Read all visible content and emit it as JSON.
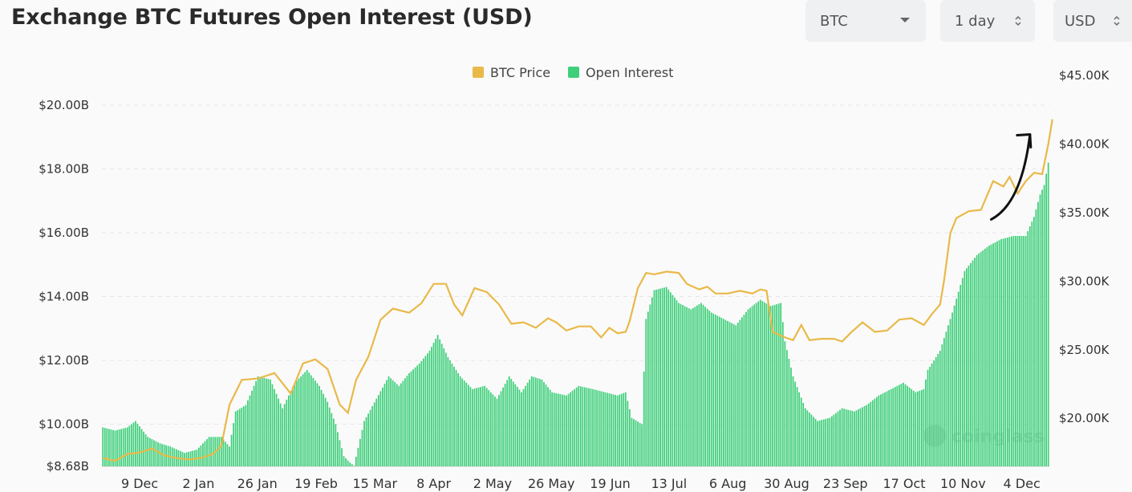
{
  "header": {
    "title": "Exchange BTC Futures Open Interest (USD)",
    "controls": [
      {
        "label": "BTC",
        "kind": "select"
      },
      {
        "label": "1 day",
        "kind": "stepper"
      },
      {
        "label": "USD",
        "kind": "stepper"
      }
    ]
  },
  "watermark": "coinglass",
  "colors": {
    "price": "#e9b949",
    "oi": "#3ecf7a",
    "arrow": "#111111",
    "grid": "#e6e6e6"
  },
  "chart_data": {
    "type": "bar",
    "legend_position": "top-center",
    "grid": true,
    "left_axis": {
      "ticks": [
        "$20.00B",
        "$18.00B",
        "$16.00B",
        "$14.00B",
        "$12.00B",
        "$10.00B",
        "$8.68B"
      ],
      "min": 8.68,
      "max": 20
    },
    "right_axis": {
      "ticks": [
        "$45.00K",
        "$40.00K",
        "$35.00K",
        "$30.00K",
        "$25.00K",
        "$20.00K"
      ],
      "min": 16500,
      "max": 45000
    },
    "x_labels": [
      "9 Dec",
      "2 Jan",
      "26 Jan",
      "19 Feb",
      "15 Mar",
      "8 Apr",
      "2 May",
      "26 May",
      "19 Jun",
      "13 Jul",
      "6 Aug",
      "30 Aug",
      "23 Sep",
      "17 Oct",
      "10 Nov",
      "4 Dec"
    ],
    "series": [
      {
        "name": "Open Interest",
        "kind": "bar",
        "axis": "left",
        "unit": "billion USD",
        "points": [
          [
            0,
            9.9
          ],
          [
            6,
            9.8
          ],
          [
            12,
            9.9
          ],
          [
            16,
            10.1
          ],
          [
            22,
            9.6
          ],
          [
            28,
            9.4
          ],
          [
            33,
            9.3
          ],
          [
            40,
            9.1
          ],
          [
            46,
            9.2
          ],
          [
            52,
            9.6
          ],
          [
            58,
            9.6
          ],
          [
            62,
            9.3
          ],
          [
            65,
            10.4
          ],
          [
            70,
            10.6
          ],
          [
            76,
            11.5
          ],
          [
            82,
            11.4
          ],
          [
            88,
            10.5
          ],
          [
            94,
            11.3
          ],
          [
            100,
            11.7
          ],
          [
            106,
            11.2
          ],
          [
            110,
            10.7
          ],
          [
            114,
            10.0
          ],
          [
            118,
            9.0
          ],
          [
            121,
            8.8
          ],
          [
            123,
            8.7
          ],
          [
            128,
            10.1
          ],
          [
            134,
            10.8
          ],
          [
            140,
            11.5
          ],
          [
            145,
            11.2
          ],
          [
            150,
            11.6
          ],
          [
            155,
            11.9
          ],
          [
            160,
            12.3
          ],
          [
            164,
            12.8
          ],
          [
            169,
            12.1
          ],
          [
            175,
            11.5
          ],
          [
            181,
            11.1
          ],
          [
            187,
            11.2
          ],
          [
            193,
            10.8
          ],
          [
            199,
            11.5
          ],
          [
            205,
            11.0
          ],
          [
            210,
            11.5
          ],
          [
            215,
            11.4
          ],
          [
            220,
            11.0
          ],
          [
            227,
            10.9
          ],
          [
            233,
            11.2
          ],
          [
            240,
            11.1
          ],
          [
            246,
            11.0
          ],
          [
            252,
            10.9
          ],
          [
            256,
            11.0
          ],
          [
            259,
            10.2
          ],
          [
            264,
            10.0
          ],
          [
            266,
            13.3
          ],
          [
            270,
            14.2
          ],
          [
            276,
            14.3
          ],
          [
            282,
            13.8
          ],
          [
            288,
            13.6
          ],
          [
            293,
            13.8
          ],
          [
            298,
            13.5
          ],
          [
            304,
            13.3
          ],
          [
            310,
            13.1
          ],
          [
            316,
            13.6
          ],
          [
            322,
            13.9
          ],
          [
            327,
            13.7
          ],
          [
            332,
            13.8
          ],
          [
            334,
            12.6
          ],
          [
            338,
            11.5
          ],
          [
            344,
            10.5
          ],
          [
            350,
            10.1
          ],
          [
            356,
            10.2
          ],
          [
            362,
            10.5
          ],
          [
            368,
            10.4
          ],
          [
            374,
            10.6
          ],
          [
            380,
            10.9
          ],
          [
            386,
            11.1
          ],
          [
            392,
            11.3
          ],
          [
            398,
            11.0
          ],
          [
            402,
            11.1
          ],
          [
            404,
            11.7
          ],
          [
            410,
            12.3
          ],
          [
            416,
            13.5
          ],
          [
            422,
            14.8
          ],
          [
            428,
            15.3
          ],
          [
            434,
            15.6
          ],
          [
            440,
            15.8
          ],
          [
            446,
            15.9
          ],
          [
            452,
            15.9
          ],
          [
            456,
            16.5
          ],
          [
            459,
            17.2
          ],
          [
            461,
            17.5
          ],
          [
            463,
            18.2
          ]
        ]
      },
      {
        "name": "BTC Price",
        "kind": "line",
        "axis": "right",
        "unit": "USD",
        "points": [
          [
            0,
            17100
          ],
          [
            6,
            16900
          ],
          [
            12,
            17400
          ],
          [
            18,
            17500
          ],
          [
            24,
            17800
          ],
          [
            30,
            17300
          ],
          [
            36,
            17100
          ],
          [
            42,
            17000
          ],
          [
            48,
            17100
          ],
          [
            54,
            17400
          ],
          [
            58,
            18000
          ],
          [
            62,
            21000
          ],
          [
            68,
            22800
          ],
          [
            76,
            22900
          ],
          [
            84,
            23300
          ],
          [
            92,
            21800
          ],
          [
            98,
            24000
          ],
          [
            104,
            24300
          ],
          [
            110,
            23600
          ],
          [
            116,
            21000
          ],
          [
            120,
            20400
          ],
          [
            124,
            22800
          ],
          [
            130,
            24500
          ],
          [
            136,
            27200
          ],
          [
            142,
            28000
          ],
          [
            150,
            27700
          ],
          [
            156,
            28400
          ],
          [
            162,
            29800
          ],
          [
            168,
            29800
          ],
          [
            172,
            28300
          ],
          [
            176,
            27500
          ],
          [
            182,
            29500
          ],
          [
            188,
            29200
          ],
          [
            194,
            28300
          ],
          [
            200,
            26900
          ],
          [
            206,
            27000
          ],
          [
            212,
            26600
          ],
          [
            218,
            27300
          ],
          [
            222,
            27000
          ],
          [
            227,
            26400
          ],
          [
            233,
            26700
          ],
          [
            239,
            26700
          ],
          [
            244,
            25900
          ],
          [
            248,
            26600
          ],
          [
            252,
            26200
          ],
          [
            256,
            26300
          ],
          [
            258,
            27100
          ],
          [
            262,
            29500
          ],
          [
            266,
            30600
          ],
          [
            270,
            30500
          ],
          [
            276,
            30700
          ],
          [
            282,
            30600
          ],
          [
            286,
            29800
          ],
          [
            292,
            29400
          ],
          [
            296,
            29600
          ],
          [
            300,
            29100
          ],
          [
            306,
            29100
          ],
          [
            312,
            29300
          ],
          [
            318,
            29100
          ],
          [
            322,
            29400
          ],
          [
            325,
            29300
          ],
          [
            328,
            26300
          ],
          [
            334,
            25900
          ],
          [
            338,
            25700
          ],
          [
            342,
            26800
          ],
          [
            346,
            25700
          ],
          [
            352,
            25800
          ],
          [
            358,
            25800
          ],
          [
            362,
            25600
          ],
          [
            366,
            26200
          ],
          [
            372,
            27000
          ],
          [
            378,
            26300
          ],
          [
            384,
            26400
          ],
          [
            390,
            27200
          ],
          [
            396,
            27300
          ],
          [
            402,
            26800
          ],
          [
            406,
            27600
          ],
          [
            410,
            28300
          ],
          [
            412,
            30100
          ],
          [
            415,
            33500
          ],
          [
            418,
            34600
          ],
          [
            424,
            35100
          ],
          [
            430,
            35200
          ],
          [
            436,
            37300
          ],
          [
            441,
            36900
          ],
          [
            444,
            37600
          ],
          [
            448,
            36400
          ],
          [
            452,
            37300
          ],
          [
            456,
            37900
          ],
          [
            460,
            37800
          ],
          [
            463,
            40000
          ],
          [
            465,
            41800
          ]
        ]
      }
    ],
    "annotations": [
      {
        "kind": "arrow",
        "description": "upward curved arrow",
        "from": [
          435,
          34500
        ],
        "to": [
          454,
          40700
        ],
        "axis": "right"
      }
    ]
  }
}
